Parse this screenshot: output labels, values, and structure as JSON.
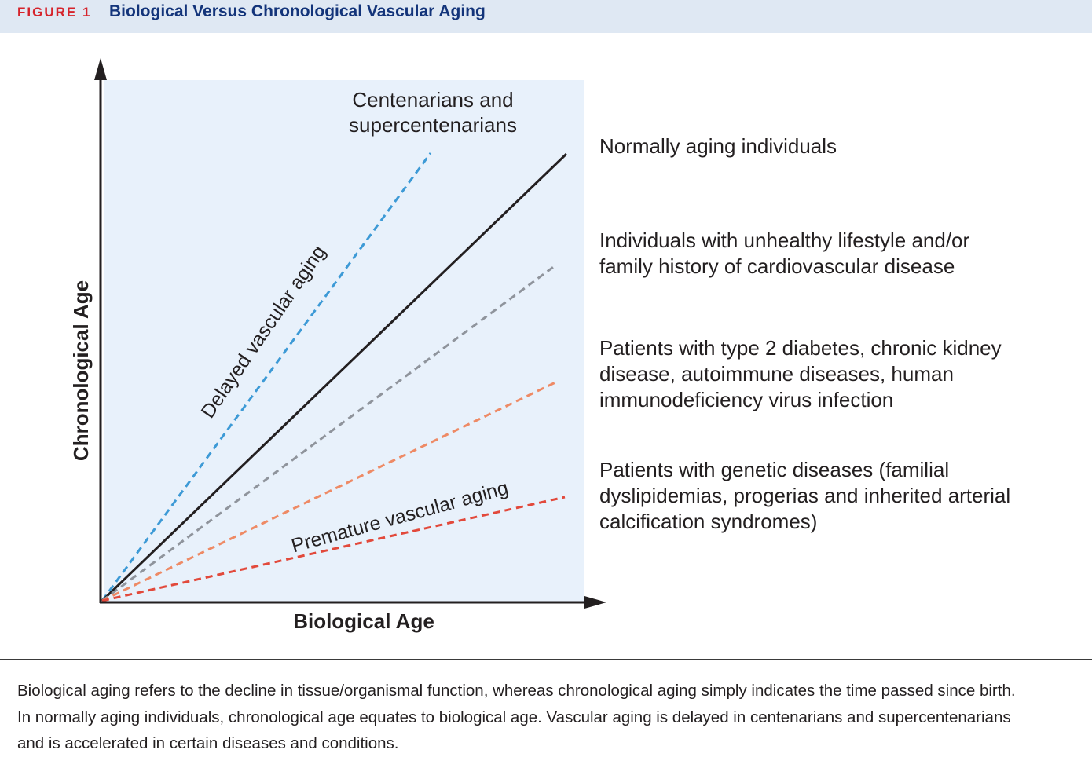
{
  "figure": {
    "number": "FIGURE 1",
    "title": "Biological Versus Chronological Vascular Aging"
  },
  "diagram": {
    "x_axis_label": "Biological Age",
    "y_axis_label": "Chronological Age",
    "top_label": [
      "Centenarians and",
      "supercentenarians"
    ],
    "delayed_label": "Delayed vascular aging",
    "premature_label": "Premature vascular aging",
    "lines": [
      {
        "id": "centenarians",
        "style": "dashed",
        "color": "#3d9ad6"
      },
      {
        "id": "normal",
        "style": "solid",
        "color": "#231f20"
      },
      {
        "id": "unhealthy-lifestyle",
        "style": "dashed",
        "color": "#8f949c"
      },
      {
        "id": "chronic-disease",
        "style": "dashed",
        "color": "#ee8a65"
      },
      {
        "id": "genetic-disease",
        "style": "dashed",
        "color": "#e2493b"
      }
    ],
    "plot_background": "#e8f1fb"
  },
  "legend": {
    "normal": "Normally aging individuals",
    "unhealthy": [
      "Individuals with unhealthy lifestyle and/or",
      "family history of cardiovascular disease"
    ],
    "chronic": [
      "Patients with type 2 diabetes, chronic kidney",
      "disease, autoimmune diseases, human",
      "immunodeficiency virus infection"
    ],
    "genetic": [
      "Patients with genetic diseases (familial",
      "dyslipidemias, progerias and inherited arterial",
      "calcification syndromes)"
    ]
  },
  "caption": [
    "Biological aging refers to the decline in tissue/organismal function, whereas chronological aging simply indicates the time passed since birth.",
    "In normally aging individuals, chronological age equates to biological age. Vascular aging is delayed in centenarians and supercentenarians",
    "and is accelerated in certain diseases and conditions."
  ],
  "colors": {
    "header_bg": "#dfe8f3",
    "figure_number": "#d6232b",
    "figure_title": "#13347a"
  }
}
